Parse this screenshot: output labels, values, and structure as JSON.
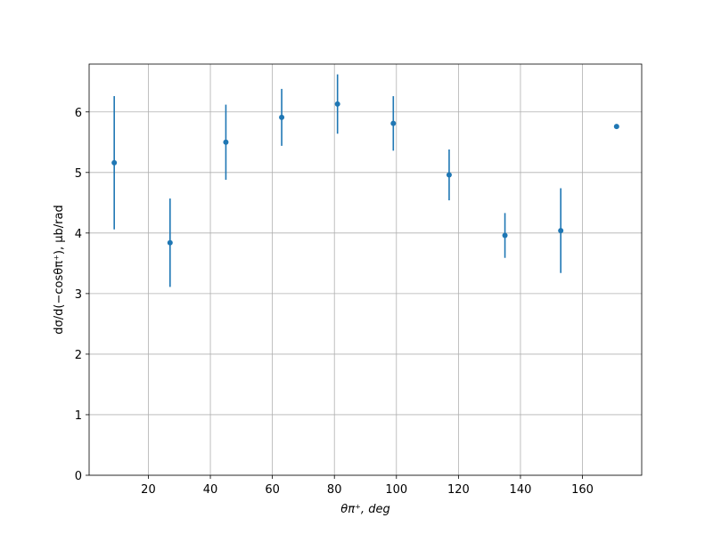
{
  "chart_data": {
    "type": "errorbar",
    "xlabel": "θπ⁺, deg",
    "ylabel": "dσ/d(−cosθπ⁺), μb/rad",
    "x": [
      9,
      27,
      45,
      63,
      81,
      99,
      117,
      135,
      153,
      171
    ],
    "values": [
      5.16,
      3.84,
      5.5,
      5.91,
      6.13,
      5.81,
      4.96,
      3.96,
      4.04,
      5.76
    ],
    "errors": [
      1.1,
      0.73,
      0.62,
      0.47,
      0.49,
      0.45,
      0.42,
      0.37,
      0.7,
      0
    ],
    "color": "#1f77b4",
    "xlim": [
      0.9,
      179.1
    ],
    "xticks": [
      20,
      40,
      60,
      80,
      100,
      120,
      140,
      160
    ],
    "ylim": [
      0,
      6.79
    ],
    "yticks": [
      0,
      1,
      2,
      3,
      4,
      5,
      6
    ],
    "grid": true
  }
}
